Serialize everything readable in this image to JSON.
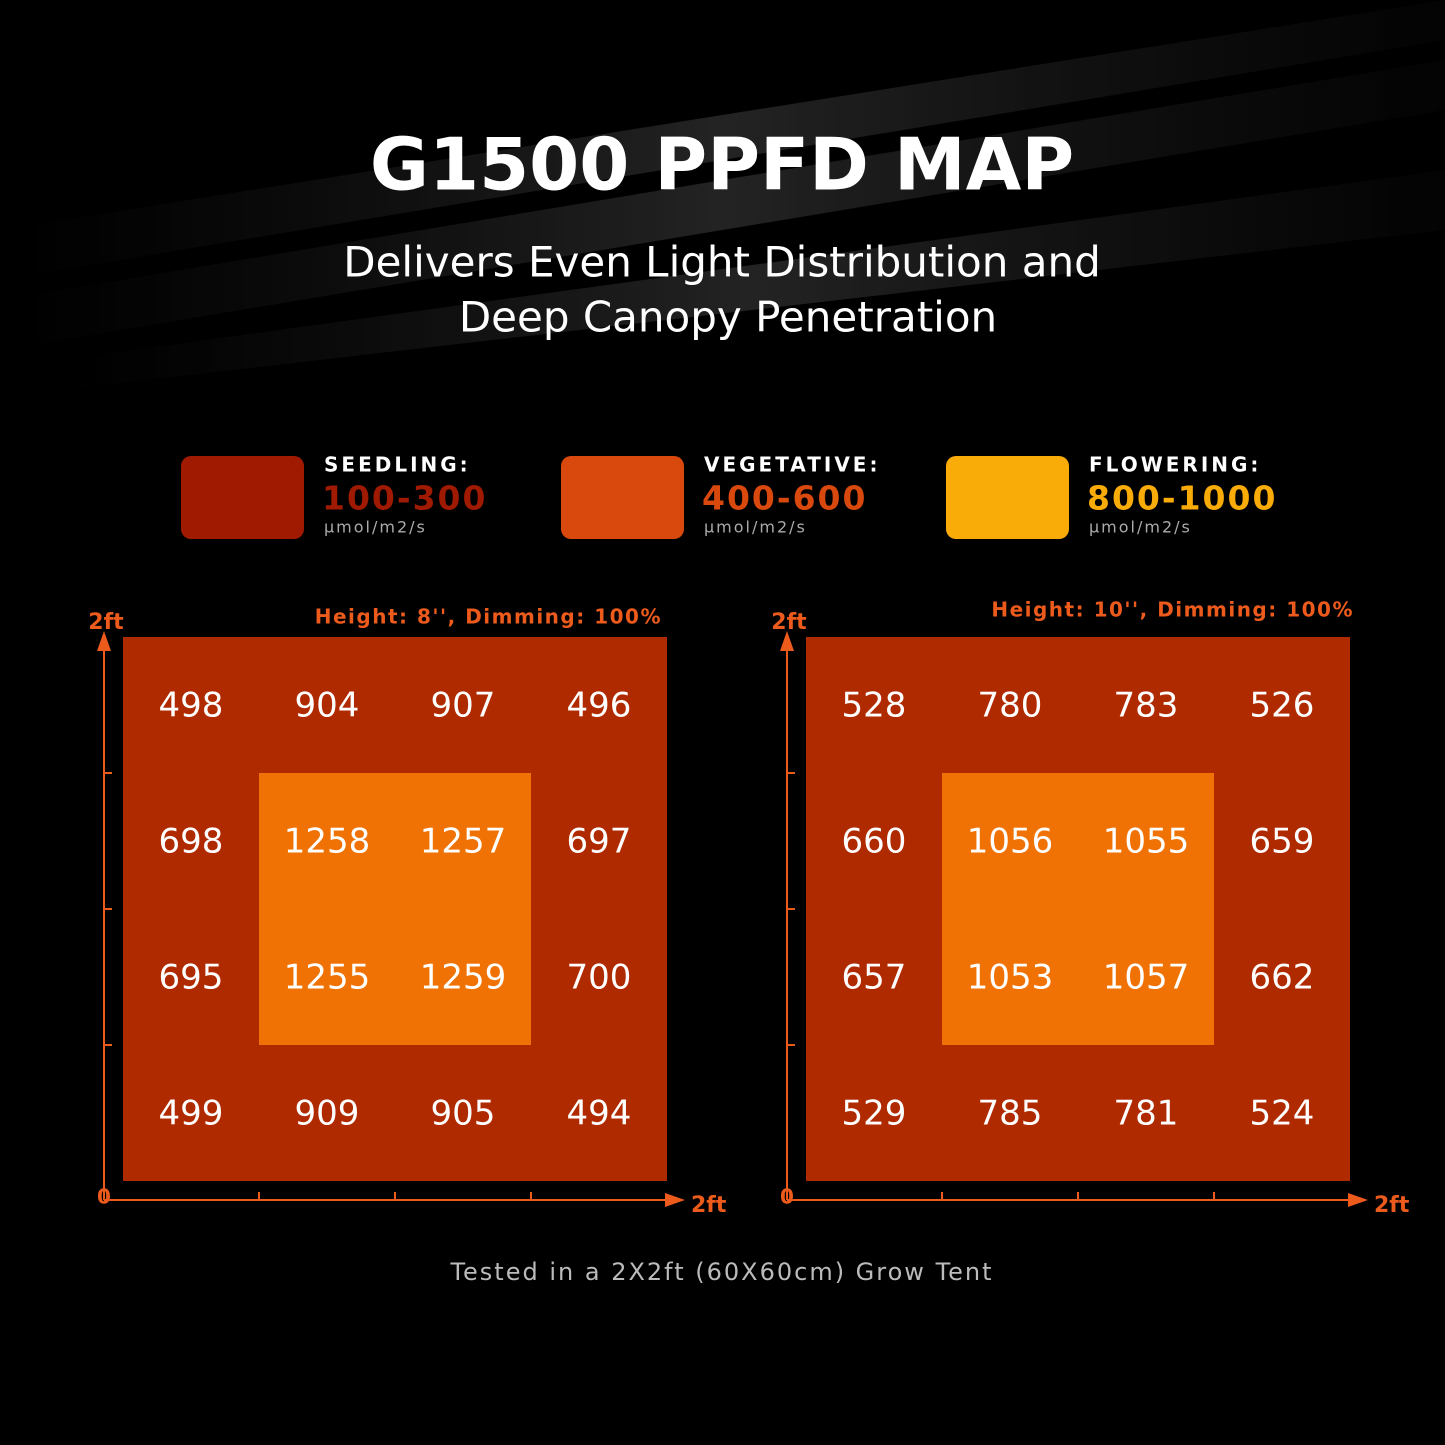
{
  "header": {
    "title": "G1500 PPFD MAP",
    "subtitle": [
      "Delivers Even Light Distribution and",
      "Deep Canopy Penetration"
    ]
  },
  "legend": [
    {
      "label": "SEEDLING:",
      "range": "100-300",
      "unit": "μmol/m2/s",
      "color": "#a01a02"
    },
    {
      "label": "VEGETATIVE:",
      "range": "400-600",
      "unit": "μmol/m2/s",
      "color": "#d9480c"
    },
    {
      "label": "FLOWERING:",
      "range": "800-1000",
      "unit": "μmol/m2/s",
      "color": "#f9ab08"
    }
  ],
  "maps": [
    {
      "caption": "Height: 8'', Dimming: 100%",
      "y_label": "2ft",
      "origin": "0",
      "x_label": "2ft",
      "rows": [
        [
          498,
          904,
          907,
          496
        ],
        [
          698,
          1258,
          1257,
          697
        ],
        [
          695,
          1255,
          1259,
          700
        ],
        [
          499,
          909,
          905,
          494
        ]
      ]
    },
    {
      "caption": "Height: 10'', Dimming: 100%",
      "y_label": "2ft",
      "origin": "0",
      "x_label": "2ft",
      "rows": [
        [
          528,
          780,
          783,
          526
        ],
        [
          660,
          1056,
          1055,
          659
        ],
        [
          657,
          1053,
          1057,
          662
        ],
        [
          529,
          785,
          781,
          524
        ]
      ]
    }
  ],
  "footer": "Tested in a 2X2ft (60X60cm) Grow Tent"
}
